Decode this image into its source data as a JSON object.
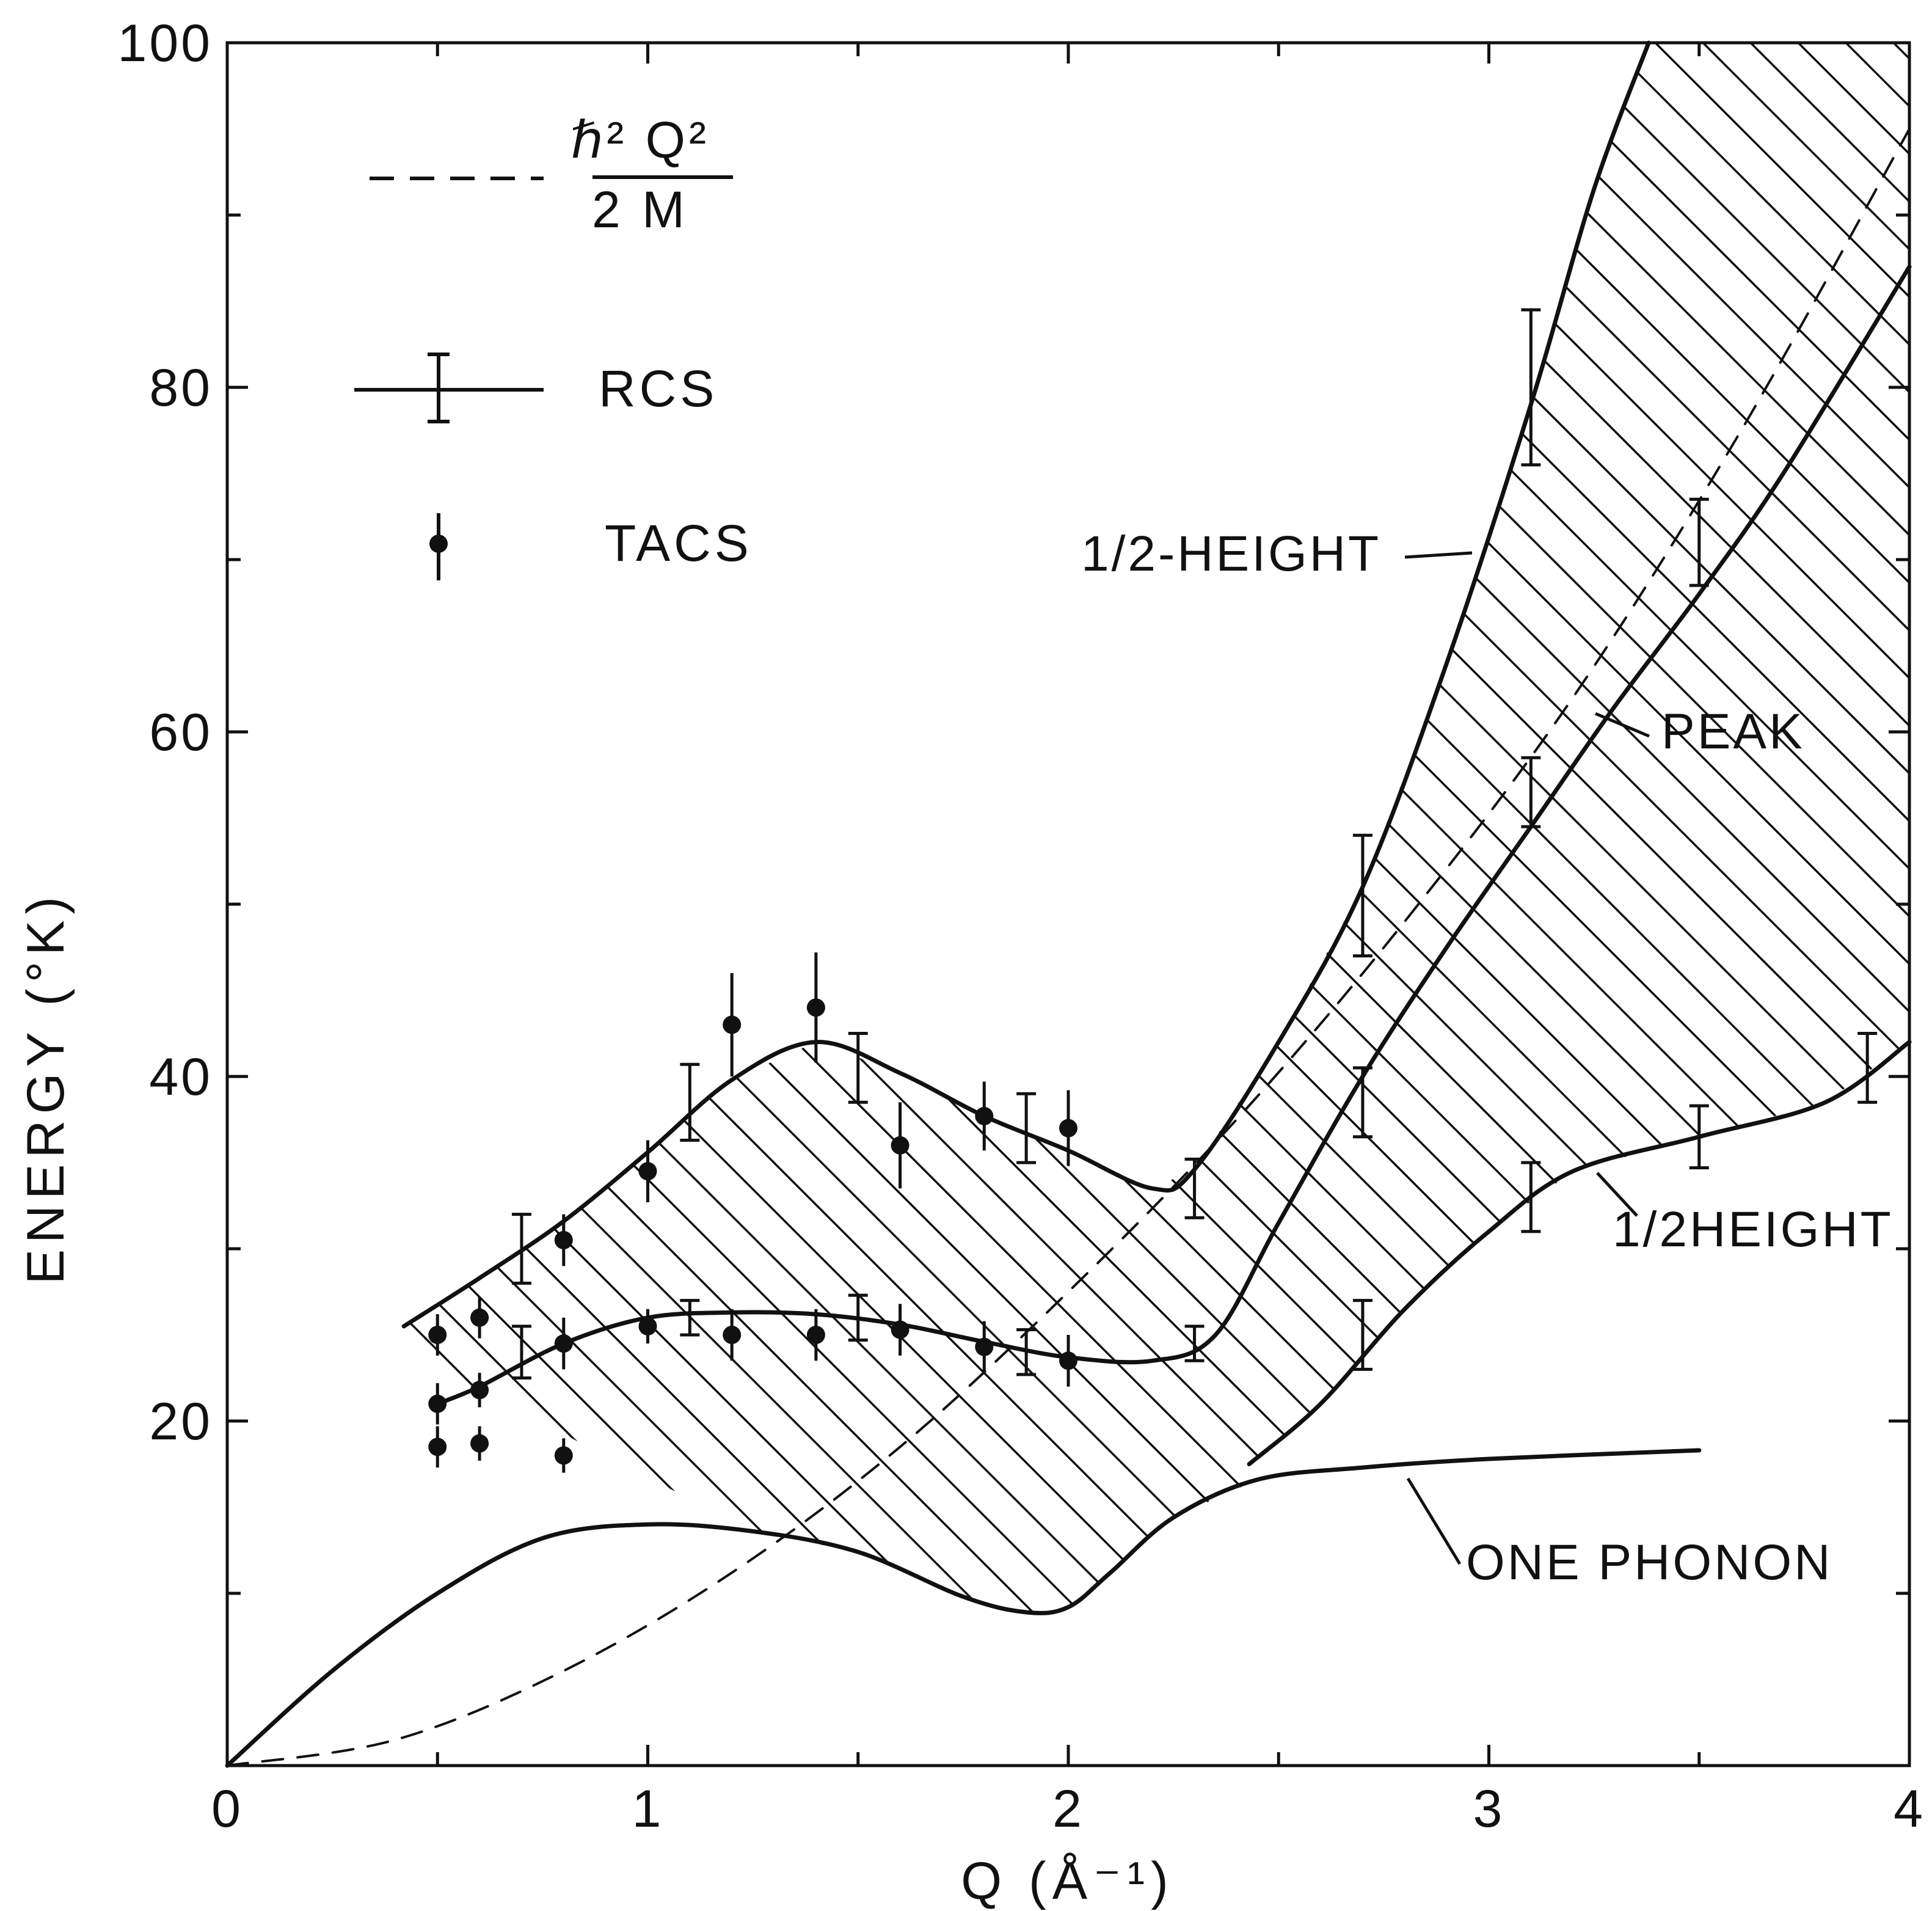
{
  "chart_data": {
    "type": "line",
    "title": "",
    "xlabel": "Q  (Å⁻¹)",
    "ylabel": "ENERGY (°K)",
    "xlim": [
      0,
      4
    ],
    "ylim": [
      0,
      100
    ],
    "x_ticks": [
      0,
      1,
      2,
      3,
      4
    ],
    "x_tick_labels": [
      "0",
      "1",
      "2",
      "3",
      "4"
    ],
    "x_minor_ticks": [
      0.5,
      1.5,
      2.5,
      3.5
    ],
    "y_ticks": [
      20,
      40,
      60,
      80,
      100
    ],
    "y_tick_labels": [
      "20",
      "40",
      "60",
      "80",
      "100"
    ],
    "y_minor_ticks": [
      10,
      30,
      50,
      70,
      90
    ],
    "grid": false,
    "legend": {
      "placement": "top-left",
      "entries": [
        {
          "key": "recoil",
          "style": "dashed",
          "formula_top": "ℏ² Q²",
          "formula_bottom": "2 M"
        },
        {
          "key": "rcs",
          "style": "line-errorbar",
          "label": "RCS"
        },
        {
          "key": "tacs",
          "style": "dot-errorbar",
          "label": "TACS"
        }
      ]
    },
    "series": [
      {
        "name": "upper-half-height",
        "style": "solid",
        "x": [
          0.42,
          0.6,
          0.8,
          1.0,
          1.2,
          1.4,
          1.6,
          1.8,
          2.0,
          2.2,
          2.3,
          2.5,
          2.7,
          2.9,
          3.1,
          3.25,
          3.38
        ],
        "y": [
          25.5,
          28.3,
          31.6,
          35.6,
          39.8,
          42.0,
          40.2,
          37.7,
          35.7,
          33.5,
          34.6,
          42.0,
          51.0,
          64.0,
          79.0,
          91.5,
          100
        ]
      },
      {
        "name": "peak",
        "style": "solid",
        "x": [
          0.5,
          0.6,
          0.8,
          1.0,
          1.2,
          1.4,
          1.6,
          1.8,
          2.0,
          2.2,
          2.35,
          2.5,
          2.7,
          2.9,
          3.1,
          3.3,
          3.5,
          3.7,
          4.0
        ],
        "y": [
          21.0,
          22.0,
          24.5,
          26.0,
          26.3,
          26.2,
          25.6,
          24.6,
          23.7,
          23.5,
          25.0,
          31.5,
          40.0,
          47.5,
          54.5,
          61.5,
          68.0,
          75.0,
          87.0
        ]
      },
      {
        "name": "lower-half-height",
        "style": "solid",
        "x": [
          2.43,
          2.6,
          2.8,
          3.0,
          3.2,
          3.5,
          3.8,
          4.0
        ],
        "y": [
          17.5,
          21.0,
          26.5,
          31.0,
          34.5,
          36.5,
          38.5,
          42.0
        ]
      },
      {
        "name": "one-phonon",
        "style": "solid",
        "x": [
          0,
          0.25,
          0.5,
          0.75,
          1.0,
          1.25,
          1.5,
          1.75,
          1.9,
          2.0,
          2.1,
          2.25,
          2.45,
          2.7,
          3.0,
          3.5
        ],
        "y": [
          0,
          5.5,
          10.0,
          13.2,
          14.0,
          13.6,
          12.4,
          9.8,
          8.9,
          9.2,
          11.2,
          14.4,
          16.6,
          17.3,
          17.8,
          18.3
        ]
      },
      {
        "name": "recoil-h2Q2-2M",
        "style": "dashed",
        "x": [
          0,
          0.4,
          0.8,
          1.2,
          1.6,
          2.0,
          2.4,
          2.8,
          3.2,
          3.6,
          4.0
        ],
        "y": [
          0,
          1.5,
          5.5,
          11.2,
          18.5,
          27.5,
          37.5,
          49.0,
          62.0,
          77.5,
          95.0
        ]
      }
    ],
    "hatched_region": "between upper 1/2-height and lower 1/2-height envelopes",
    "rcs_points": [
      {
        "x": 0.7,
        "y": 30.0,
        "err": 2.0
      },
      {
        "x": 0.7,
        "y": 24.0,
        "err": 1.5
      },
      {
        "x": 1.1,
        "y": 38.5,
        "err": 2.2
      },
      {
        "x": 1.1,
        "y": 26.0,
        "err": 1.0
      },
      {
        "x": 1.5,
        "y": 40.5,
        "err": 2.0
      },
      {
        "x": 1.5,
        "y": 26.0,
        "err": 1.3
      },
      {
        "x": 1.9,
        "y": 37.0,
        "err": 2.0
      },
      {
        "x": 1.9,
        "y": 24.0,
        "err": 1.3
      },
      {
        "x": 2.3,
        "y": 33.5,
        "err": 1.7
      },
      {
        "x": 2.3,
        "y": 24.5,
        "err": 1.0
      },
      {
        "x": 2.7,
        "y": 50.5,
        "err": 3.5
      },
      {
        "x": 2.7,
        "y": 38.5,
        "err": 2.0
      },
      {
        "x": 2.7,
        "y": 25.0,
        "err": 2.0
      },
      {
        "x": 3.1,
        "y": 80.0,
        "err": 4.5
      },
      {
        "x": 3.1,
        "y": 56.5,
        "err": 2.0
      },
      {
        "x": 3.1,
        "y": 33.0,
        "err": 2.0
      },
      {
        "x": 3.5,
        "y": 71.0,
        "err": 2.5
      },
      {
        "x": 3.5,
        "y": 36.5,
        "err": 1.8
      },
      {
        "x": 3.9,
        "y": 40.5,
        "err": 2.0
      }
    ],
    "tacs_points": [
      {
        "x": 0.5,
        "y": 25.0,
        "err": 1.2
      },
      {
        "x": 0.5,
        "y": 21.0,
        "err": 1.2
      },
      {
        "x": 0.5,
        "y": 18.5,
        "err": 1.2
      },
      {
        "x": 0.6,
        "y": 26.0,
        "err": 1.2
      },
      {
        "x": 0.6,
        "y": 21.8,
        "err": 1.0
      },
      {
        "x": 0.6,
        "y": 18.7,
        "err": 1.0
      },
      {
        "x": 0.8,
        "y": 30.5,
        "err": 1.5
      },
      {
        "x": 0.8,
        "y": 24.5,
        "err": 1.5
      },
      {
        "x": 0.8,
        "y": 18.0,
        "err": 1.0
      },
      {
        "x": 1.0,
        "y": 34.5,
        "err": 1.8
      },
      {
        "x": 1.0,
        "y": 25.5,
        "err": 1.0
      },
      {
        "x": 1.2,
        "y": 43.0,
        "err": 3.0
      },
      {
        "x": 1.2,
        "y": 25.0,
        "err": 1.5
      },
      {
        "x": 1.4,
        "y": 44.0,
        "err": 3.2
      },
      {
        "x": 1.4,
        "y": 25.0,
        "err": 1.5
      },
      {
        "x": 1.6,
        "y": 36.0,
        "err": 2.5
      },
      {
        "x": 1.6,
        "y": 25.3,
        "err": 1.5
      },
      {
        "x": 1.8,
        "y": 37.7,
        "err": 2.0
      },
      {
        "x": 1.8,
        "y": 24.3,
        "err": 1.5
      },
      {
        "x": 2.0,
        "y": 37.0,
        "err": 2.2
      },
      {
        "x": 2.0,
        "y": 23.5,
        "err": 1.5
      }
    ],
    "annotations": [
      {
        "key": "upper-half-height",
        "text_main": "1/2-HEIGHT",
        "x": 2.85,
        "y": 70.2,
        "target_x": 2.97,
        "target_y": 70.0
      },
      {
        "key": "peak",
        "text_main": "PEAK",
        "x": 3.8,
        "y": 59.5,
        "target_x": 3.27,
        "target_y": 61.0
      },
      {
        "key": "lower-half-height",
        "text_main": "1/2HEIGHT",
        "x": 3.5,
        "y": 31.0,
        "target_x": 3.25,
        "target_y": 34.5
      },
      {
        "key": "one-phonon",
        "text_main": "ONE PHONON",
        "x": 3.38,
        "y": 12.2,
        "target_x": 2.83,
        "target_y": 17.4
      }
    ]
  },
  "text": {
    "legend_formula_top": "ℏ² Q²",
    "legend_formula_bottom": "2 M",
    "legend_rcs": "RCS",
    "legend_tacs": "TACS",
    "label_upper_half_height": "1/2-HEIGHT",
    "label_peak": "PEAK",
    "label_lower_half_height": "1/2HEIGHT",
    "label_one_phonon": "ONE PHONON",
    "xlabel": "Q  (Å⁻¹)",
    "ylabel": "ENERGY (°K)"
  },
  "colors": {
    "ink": "#111111",
    "background": "#ffffff"
  }
}
